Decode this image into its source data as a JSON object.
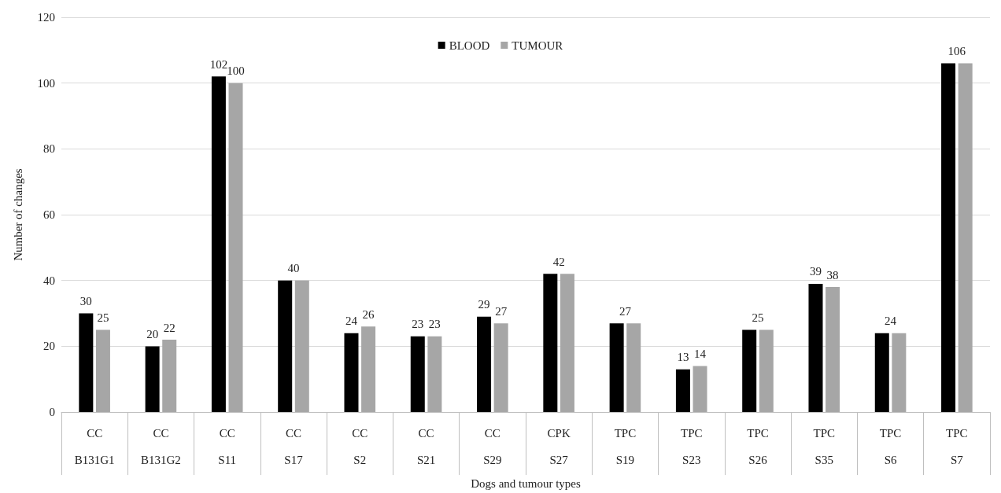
{
  "chart_data": {
    "type": "bar",
    "xlabel": "Dogs and tumour types",
    "ylabel": "Number of changes",
    "categories": [
      "CC\nB131G1",
      "CC\nB131G2",
      "CC\nS11",
      "CC\nS17",
      "CC\nS2",
      "CC\nS21",
      "CC\nS29",
      "CPK\nS27",
      "TPC\nS19",
      "TPC\nS23",
      "TPC\nS26",
      "TPC\nS35",
      "TPC\nS6",
      "TPC\nS7"
    ],
    "series": [
      {
        "name": "BLOOD",
        "color": "#000000",
        "values": [
          30,
          20,
          102,
          40,
          24,
          23,
          29,
          42,
          27,
          13,
          25,
          39,
          24,
          106
        ],
        "value_labels": [
          "30",
          "20",
          "102",
          "40",
          "24",
          "23",
          "29",
          "42",
          "27",
          "13",
          "25",
          "39",
          "24",
          "106"
        ]
      },
      {
        "name": "TUMOUR",
        "color": "#a6a6a6",
        "values": [
          25,
          22,
          100,
          40,
          26,
          23,
          27,
          42,
          27,
          14,
          25,
          38,
          24,
          106
        ],
        "value_labels": [
          "25",
          "22",
          "100",
          null,
          "26",
          "23",
          "27",
          null,
          null,
          "14",
          null,
          "38",
          null,
          null
        ]
      }
    ],
    "ylim": [
      0,
      120
    ],
    "yticks": [
      0,
      20,
      40,
      60,
      80,
      100,
      120
    ],
    "grid": "y",
    "legend": "top"
  }
}
